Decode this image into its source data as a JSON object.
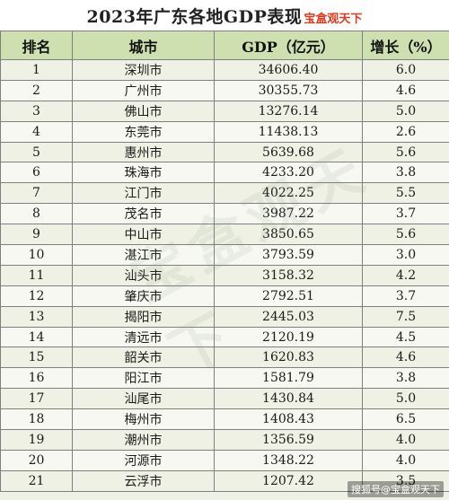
{
  "title": {
    "text": "2023年广东各地GDP表现",
    "tag": "宝盒观天下"
  },
  "headers": {
    "rank": "排名",
    "city": "城市",
    "gdp": "GDP（亿元）",
    "growth": "增长（%）"
  },
  "rows": [
    {
      "rank": "1",
      "city": "深圳市",
      "gdp": "34606.40",
      "growth": "6.0"
    },
    {
      "rank": "2",
      "city": "广州市",
      "gdp": "30355.73",
      "growth": "4.6"
    },
    {
      "rank": "3",
      "city": "佛山市",
      "gdp": "13276.14",
      "growth": "5.0"
    },
    {
      "rank": "4",
      "city": "东莞市",
      "gdp": "11438.13",
      "growth": "2.6"
    },
    {
      "rank": "5",
      "city": "惠州市",
      "gdp": "5639.68",
      "growth": "5.6"
    },
    {
      "rank": "6",
      "city": "珠海市",
      "gdp": "4233.20",
      "growth": "3.8"
    },
    {
      "rank": "7",
      "city": "江门市",
      "gdp": "4022.25",
      "growth": "5.5"
    },
    {
      "rank": "8",
      "city": "茂名市",
      "gdp": "3987.22",
      "growth": "3.7"
    },
    {
      "rank": "9",
      "city": "中山市",
      "gdp": "3850.65",
      "growth": "5.6"
    },
    {
      "rank": "10",
      "city": "湛江市",
      "gdp": "3793.59",
      "growth": "3.0"
    },
    {
      "rank": "11",
      "city": "汕头市",
      "gdp": "3158.32",
      "growth": "4.2"
    },
    {
      "rank": "12",
      "city": "肇庆市",
      "gdp": "2792.51",
      "growth": "3.7"
    },
    {
      "rank": "13",
      "city": "揭阳市",
      "gdp": "2445.03",
      "growth": "7.5"
    },
    {
      "rank": "14",
      "city": "清远市",
      "gdp": "2120.19",
      "growth": "4.5"
    },
    {
      "rank": "15",
      "city": "韶关市",
      "gdp": "1620.83",
      "growth": "4.6"
    },
    {
      "rank": "16",
      "city": "阳江市",
      "gdp": "1581.79",
      "growth": "3.8"
    },
    {
      "rank": "17",
      "city": "汕尾市",
      "gdp": "1430.84",
      "growth": "5.0"
    },
    {
      "rank": "18",
      "city": "梅州市",
      "gdp": "1408.43",
      "growth": "6.5"
    },
    {
      "rank": "19",
      "city": "潮州市",
      "gdp": "1356.59",
      "growth": "4.0"
    },
    {
      "rank": "20",
      "city": "河源市",
      "gdp": "1348.22",
      "growth": "4.0"
    },
    {
      "rank": "21",
      "city": "云浮市",
      "gdp": "1207.42",
      "growth": "3.5"
    }
  ],
  "watermark": "宝盒观天下",
  "credit": "搜狐号@宝盒观天下",
  "colors": {
    "header_bg": "#cfe0b0",
    "title_tag": "#e03a1e",
    "border": "#7f7f7f"
  }
}
